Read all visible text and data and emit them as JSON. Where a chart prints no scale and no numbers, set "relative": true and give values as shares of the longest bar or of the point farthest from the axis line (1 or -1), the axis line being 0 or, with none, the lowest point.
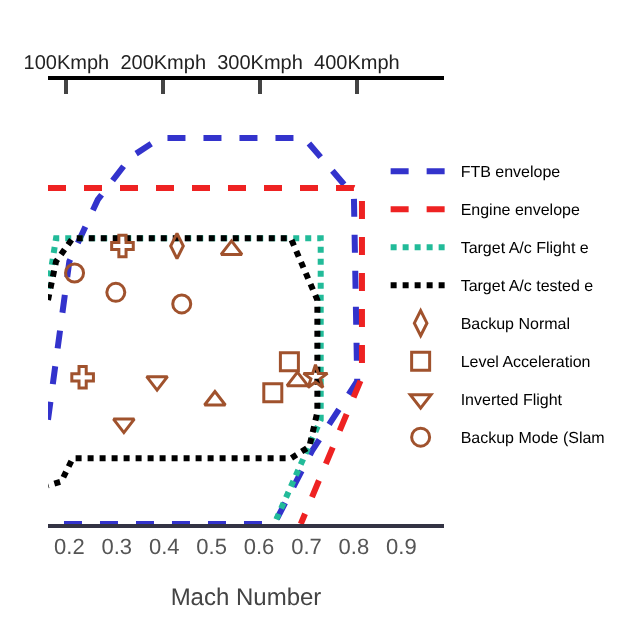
{
  "chart_data": {
    "type": "line",
    "relative": true,
    "xlabel": "Mach Number",
    "xlim": [
      0.155,
      0.99
    ],
    "xticks": [
      0.2,
      0.3,
      0.4,
      0.5,
      0.6,
      0.7,
      0.8,
      0.9
    ],
    "x2lim": [
      81,
      490
    ],
    "x2ticks": [
      {
        "value": 100,
        "label": "100Kmph"
      },
      {
        "value": 200,
        "label": "200Kmph"
      },
      {
        "value": 300,
        "label": "300Kmph"
      },
      {
        "value": 400,
        "label": "400Kmph"
      }
    ],
    "tick_labels": "x",
    "legend": "top right",
    "series": [
      {
        "name": "FTB envelope",
        "type": "line",
        "line_style": "dashed",
        "marker": "none",
        "color": "#3333cc",
        "x": [
          0.155,
          0.2,
          0.26,
          0.329,
          0.392,
          0.695,
          0.8,
          0.807,
          0.712,
          0.632,
          0.155
        ],
        "values": [
          0.27,
          0.68,
          0.84,
          0.95,
          1.0,
          1.0,
          0.85,
          0.37,
          0.19,
          0.0,
          0.0
        ]
      },
      {
        "name": "Engine envelope",
        "type": "line",
        "line_style": "dashed",
        "marker": "none",
        "color": "#ee2222",
        "x": [
          0.155,
          0.8,
          0.817,
          0.817,
          0.688
        ],
        "values": [
          0.87,
          0.87,
          0.86,
          0.38,
          0.0
        ]
      },
      {
        "name": "Target A/c Flight e",
        "type": "line",
        "line_style": "dotted",
        "marker": "none",
        "color": "#22bb99",
        "x": [
          0.155,
          0.172,
          0.73,
          0.73,
          0.632
        ],
        "values": [
          0.61,
          0.74,
          0.74,
          0.27,
          0.0
        ]
      },
      {
        "name": "Target A/c tested e",
        "type": "line",
        "line_style": "dotted",
        "marker": "none",
        "color": "#000000",
        "x": [
          0.155,
          0.172,
          0.207,
          0.667,
          0.723,
          0.723,
          0.706,
          0.667,
          0.207,
          0.183,
          0.155
        ],
        "values": [
          0.58,
          0.68,
          0.74,
          0.74,
          0.58,
          0.29,
          0.2,
          0.17,
          0.17,
          0.11,
          0.1
        ]
      },
      {
        "name": "Backup Normal",
        "type": "scatter",
        "marker": "diamond",
        "color": "#a0522d",
        "x": [
          0.427
        ],
        "values": [
          0.72
        ]
      },
      {
        "name": "Level Acceleration",
        "type": "scatter",
        "marker": "square",
        "color": "#a0522d",
        "x": [
          0.664,
          0.629
        ],
        "values": [
          0.42,
          0.34
        ]
      },
      {
        "name": "Inverted Flight",
        "type": "scatter",
        "marker": "triangle-down",
        "color": "#a0522d",
        "x": [
          0.385,
          0.315
        ],
        "values": [
          0.37,
          0.26
        ]
      },
      {
        "name": "Backup Mode (Slam",
        "type": "scatter",
        "marker": "circle",
        "color": "#a0522d",
        "x": [
          0.211,
          0.298,
          0.437
        ],
        "values": [
          0.65,
          0.6,
          0.57
        ]
      },
      {
        "type": "scatter",
        "marker": "cross",
        "color": "#a0522d",
        "x": [
          0.312,
          0.228
        ],
        "values": [
          0.72,
          0.38
        ]
      },
      {
        "type": "scatter",
        "marker": "triangle",
        "color": "#a0522d",
        "x": [
          0.542,
          0.507,
          0.681
        ],
        "values": [
          0.71,
          0.32,
          0.37
        ]
      },
      {
        "type": "scatter",
        "marker": "star",
        "color": "#a0522d",
        "x": [
          0.719
        ],
        "values": [
          0.38
        ]
      }
    ]
  }
}
